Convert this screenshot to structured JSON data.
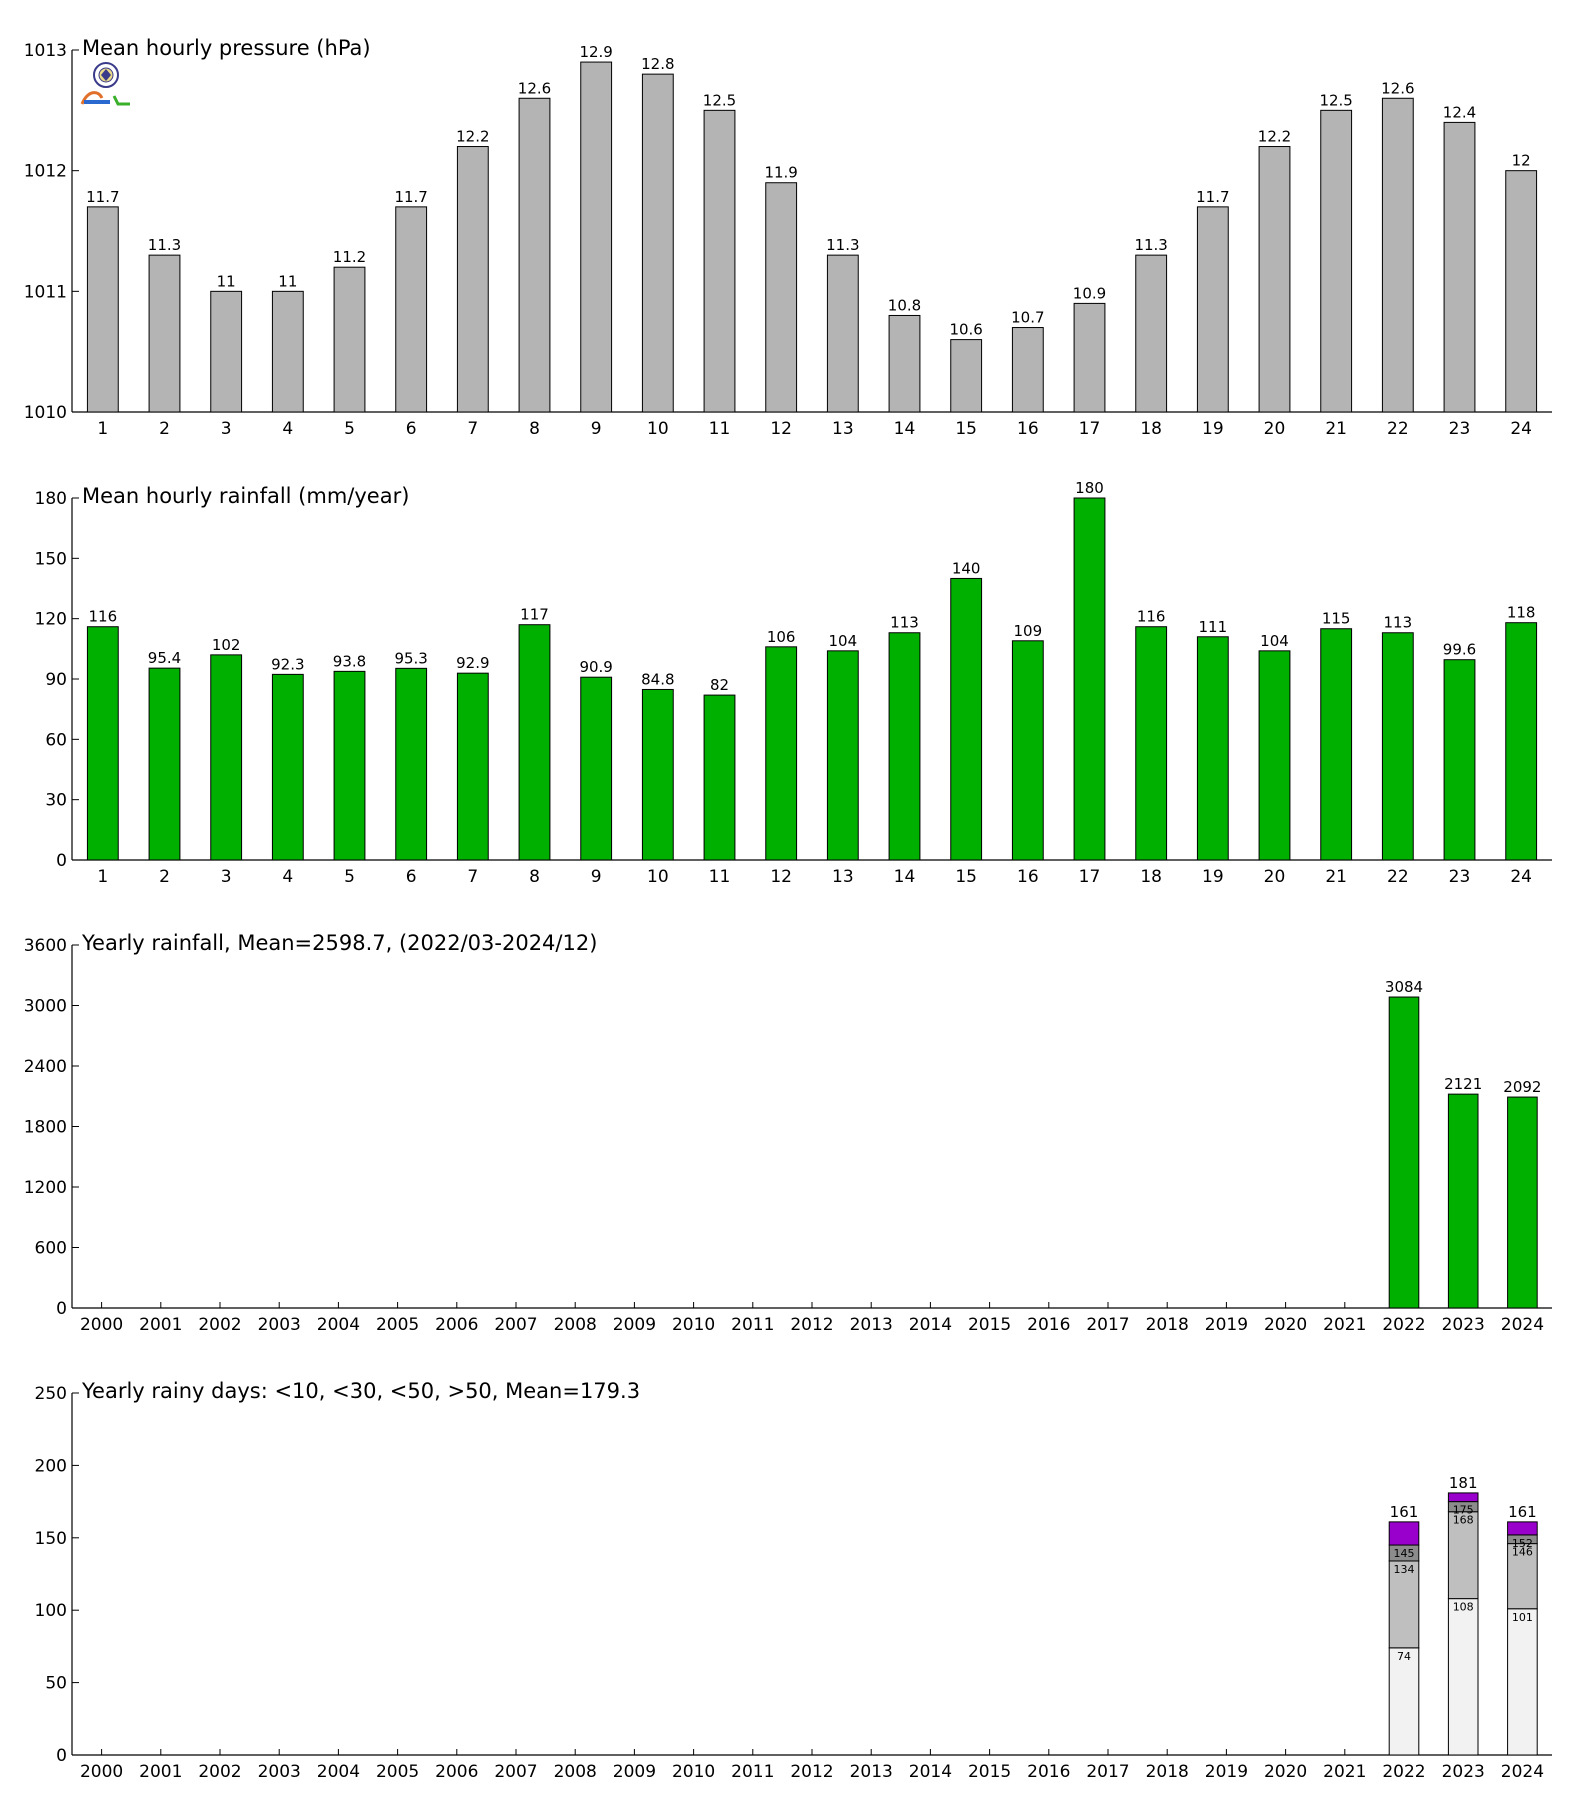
{
  "colors": {
    "pressure": "#b4b4b4",
    "rainfall": "#00b000",
    "yearly": "#00b000",
    "rainy_days": [
      "#f2f2f2",
      "#bfbfbf",
      "#8c8c8c",
      "#9900cc"
    ]
  },
  "logo_icon": "lab-seal-icon",
  "chart_data": [
    {
      "type": "bar",
      "title": "Mean hourly pressure (hPa)",
      "categories": [
        "1",
        "2",
        "3",
        "4",
        "5",
        "6",
        "7",
        "8",
        "9",
        "10",
        "11",
        "12",
        "13",
        "14",
        "15",
        "16",
        "17",
        "18",
        "19",
        "20",
        "21",
        "22",
        "23",
        "24"
      ],
      "values": [
        1011.7,
        1011.3,
        1011.0,
        1011.0,
        1011.2,
        1011.7,
        1012.2,
        1012.6,
        1012.9,
        1012.8,
        1012.5,
        1011.9,
        1011.3,
        1010.8,
        1010.6,
        1010.7,
        1010.9,
        1011.3,
        1011.7,
        1012.2,
        1012.5,
        1012.6,
        1012.4,
        1012.0
      ],
      "data_labels": [
        "11.7",
        "11.3",
        "11",
        "11",
        "11.2",
        "11.7",
        "12.2",
        "12.6",
        "12.9",
        "12.8",
        "12.5",
        "11.9",
        "11.3",
        "10.8",
        "10.6",
        "10.7",
        "10.9",
        "11.3",
        "11.7",
        "12.2",
        "12.5",
        "12.6",
        "12.4",
        "12"
      ],
      "ylim": [
        1010,
        1013
      ],
      "yticks": [
        1010,
        1011,
        1012,
        1013
      ],
      "ytick_labels": [
        "1010",
        "1011",
        "1012",
        "1013"
      ]
    },
    {
      "type": "bar",
      "title": "Mean hourly rainfall (mm/year)",
      "categories": [
        "1",
        "2",
        "3",
        "4",
        "5",
        "6",
        "7",
        "8",
        "9",
        "10",
        "11",
        "12",
        "13",
        "14",
        "15",
        "16",
        "17",
        "18",
        "19",
        "20",
        "21",
        "22",
        "23",
        "24"
      ],
      "values": [
        116,
        95.4,
        102,
        92.3,
        93.8,
        95.3,
        92.9,
        117,
        90.9,
        84.8,
        82,
        106,
        104,
        113,
        140,
        109,
        180,
        116,
        111,
        104,
        115,
        113,
        99.6,
        118
      ],
      "data_labels": [
        "116",
        "95.4",
        "102",
        "92.3",
        "93.8",
        "95.3",
        "92.9",
        "117",
        "90.9",
        "84.8",
        "82",
        "106",
        "104",
        "113",
        "140",
        "109",
        "180",
        "116",
        "111",
        "104",
        "115",
        "113",
        "99.6",
        "118"
      ],
      "ylim": [
        0,
        180
      ],
      "yticks": [
        0,
        30,
        60,
        90,
        120,
        150,
        180
      ],
      "ytick_labels": [
        "0",
        "30",
        "60",
        "90",
        "120",
        "150",
        "180"
      ]
    },
    {
      "type": "bar",
      "title": "Yearly rainfall, Mean=2598.7, (2022/03-2024/12)",
      "categories": [
        "2000",
        "2001",
        "2002",
        "2003",
        "2004",
        "2005",
        "2006",
        "2007",
        "2008",
        "2009",
        "2010",
        "2011",
        "2012",
        "2013",
        "2014",
        "2015",
        "2016",
        "2017",
        "2018",
        "2019",
        "2020",
        "2021",
        "2022",
        "2023",
        "2024"
      ],
      "values": [
        null,
        null,
        null,
        null,
        null,
        null,
        null,
        null,
        null,
        null,
        null,
        null,
        null,
        null,
        null,
        null,
        null,
        null,
        null,
        null,
        null,
        null,
        3084,
        2121,
        2092
      ],
      "data_labels": [
        "",
        "",
        "",
        "",
        "",
        "",
        "",
        "",
        "",
        "",
        "",
        "",
        "",
        "",
        "",
        "",
        "",
        "",
        "",
        "",
        "",
        "",
        "3084",
        "2121",
        "2092"
      ],
      "ylim": [
        0,
        3600
      ],
      "yticks": [
        0,
        600,
        1200,
        1800,
        2400,
        3000,
        3600
      ],
      "ytick_labels": [
        "0",
        "600",
        "1200",
        "1800",
        "2400",
        "3000",
        "3600"
      ]
    },
    {
      "type": "bar",
      "stacked": true,
      "title": "Yearly rainy days: <10, <30, <50, >50, Mean=179.3",
      "categories": [
        "2000",
        "2001",
        "2002",
        "2003",
        "2004",
        "2005",
        "2006",
        "2007",
        "2008",
        "2009",
        "2010",
        "2011",
        "2012",
        "2013",
        "2014",
        "2015",
        "2016",
        "2017",
        "2018",
        "2019",
        "2020",
        "2021",
        "2022",
        "2023",
        "2024"
      ],
      "series": [
        {
          "name": "<10",
          "values": [
            null,
            null,
            null,
            null,
            null,
            null,
            null,
            null,
            null,
            null,
            null,
            null,
            null,
            null,
            null,
            null,
            null,
            null,
            null,
            null,
            null,
            null,
            74,
            108,
            101
          ]
        },
        {
          "name": "<30",
          "values": [
            null,
            null,
            null,
            null,
            null,
            null,
            null,
            null,
            null,
            null,
            null,
            null,
            null,
            null,
            null,
            null,
            null,
            null,
            null,
            null,
            null,
            null,
            60,
            60,
            45
          ]
        },
        {
          "name": "<50",
          "values": [
            null,
            null,
            null,
            null,
            null,
            null,
            null,
            null,
            null,
            null,
            null,
            null,
            null,
            null,
            null,
            null,
            null,
            null,
            null,
            null,
            null,
            null,
            11,
            7,
            6
          ]
        },
        {
          "name": ">50",
          "values": [
            null,
            null,
            null,
            null,
            null,
            null,
            null,
            null,
            null,
            null,
            null,
            null,
            null,
            null,
            null,
            null,
            null,
            null,
            null,
            null,
            null,
            null,
            16,
            6,
            9
          ]
        }
      ],
      "cumulative_labels": {
        "2022": [
          "74",
          "134",
          "145"
        ],
        "2023": [
          "108",
          "168",
          "175"
        ],
        "2024": [
          "101",
          "146",
          "152"
        ]
      },
      "totals": {
        "2022": "161",
        "2023": "181",
        "2024": "161"
      },
      "ylim": [
        0,
        250
      ],
      "yticks": [
        0,
        50,
        100,
        150,
        200,
        250
      ],
      "ytick_labels": [
        "0",
        "50",
        "100",
        "150",
        "200",
        "250"
      ]
    }
  ]
}
